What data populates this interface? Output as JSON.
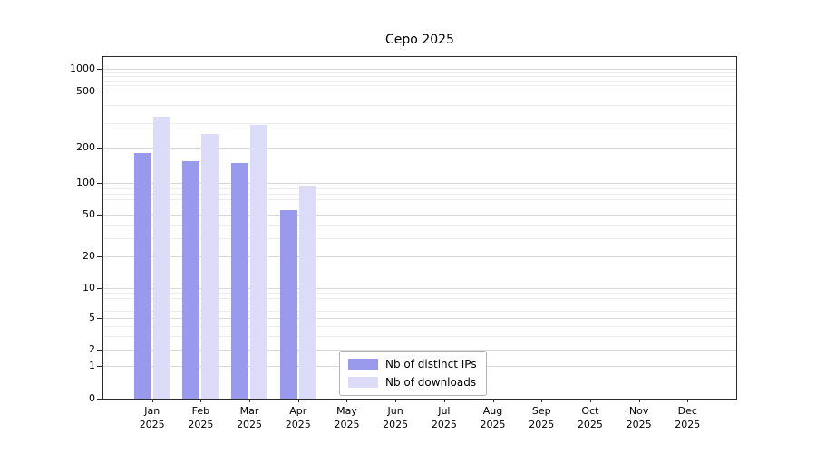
{
  "title": "Cepo 2025",
  "chart_data": {
    "type": "bar",
    "title": "Cepo 2025",
    "categories": [
      "Jan 2025",
      "Feb 2025",
      "Mar 2025",
      "Apr 2025",
      "May 2025",
      "Jun 2025",
      "Jul 2025",
      "Aug 2025",
      "Sep 2025",
      "Oct 2025",
      "Nov 2025",
      "Dec 2025"
    ],
    "month_labels": [
      "Jan",
      "Feb",
      "Mar",
      "Apr",
      "May",
      "Jun",
      "Jul",
      "Aug",
      "Sep",
      "Oct",
      "Nov",
      "Dec"
    ],
    "year": "2025",
    "series": [
      {
        "name": "Nb of distinct IPs",
        "color": "#9999ee",
        "values": [
          180,
          155,
          148,
          55,
          0,
          0,
          0,
          0,
          0,
          0,
          0,
          0
        ]
      },
      {
        "name": "Nb of downloads",
        "color": "#dcdcf8",
        "values": [
          330,
          250,
          290,
          95,
          0,
          0,
          0,
          0,
          0,
          0,
          0,
          0
        ]
      }
    ],
    "y_ticks": [
      0,
      1,
      2,
      5,
      10,
      20,
      50,
      100,
      200,
      500,
      1000
    ],
    "y_minor_gridlines": [
      3,
      4,
      6,
      7,
      8,
      9,
      30,
      40,
      60,
      70,
      80,
      90,
      300,
      400,
      600,
      700,
      800,
      900
    ],
    "scale": "log",
    "ylim": [
      0,
      1200
    ],
    "grid": true,
    "legend_position": "bottom-center",
    "colors": {
      "grid_major": "#d9d9d9",
      "grid_minor": "#ececec",
      "axis": "#2a2a2a",
      "background": "#ffffff"
    }
  }
}
